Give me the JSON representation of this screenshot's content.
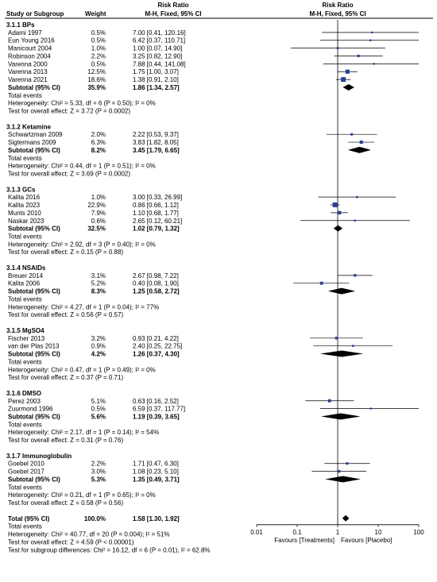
{
  "header": {
    "group1": "Risk Ratio",
    "group2": "Risk Ratio",
    "col_study": "Study or Subgroup",
    "col_weight": "Weight",
    "col_rr": "M-H, Fixed, 95% CI",
    "col_plot": "M-H, Fixed, 95% CI"
  },
  "chart_data": {
    "type": "forest",
    "x_scale": "log",
    "xlim": [
      0.01,
      100
    ],
    "x_ticks": [
      "0.01",
      "0.1",
      "1",
      "10",
      "100"
    ],
    "x_tick_values": [
      0.01,
      0.1,
      1,
      10,
      100
    ],
    "left_label": "Favours [Treatments]",
    "right_label": "Favours [Placebo]",
    "subgroups": [
      {
        "title": "3.1.1 BPs",
        "studies": [
          {
            "name": "Adami 1997",
            "weight": "0.5%",
            "rr_text": "7.00 [0.41, 120.16]",
            "rr": 7.0,
            "lo": 0.41,
            "hi": 120.16
          },
          {
            "name": "Eun Young 2016",
            "weight": "0.5%",
            "rr_text": "6.42 [0.37, 110.71]",
            "rr": 6.42,
            "lo": 0.37,
            "hi": 110.71
          },
          {
            "name": "Manicourt 2004",
            "weight": "1.0%",
            "rr_text": "1.00 [0.07, 14.90]",
            "rr": 1.0,
            "lo": 0.07,
            "hi": 14.9
          },
          {
            "name": "Robinson 2004",
            "weight": "2.2%",
            "rr_text": "3.25 [0.82, 12.90]",
            "rr": 3.25,
            "lo": 0.82,
            "hi": 12.9
          },
          {
            "name": "Varenna 2000",
            "weight": "0.5%",
            "rr_text": "7.88 [0.44, 141.08]",
            "rr": 7.88,
            "lo": 0.44,
            "hi": 141.08
          },
          {
            "name": "Varenna 2013",
            "weight": "12.5%",
            "rr_text": "1.75 [1.00, 3.07]",
            "rr": 1.75,
            "lo": 1.0,
            "hi": 3.07
          },
          {
            "name": "Varenna 2021",
            "weight": "18.6%",
            "rr_text": "1.38 [0.91, 2.10]",
            "rr": 1.38,
            "lo": 0.91,
            "hi": 2.1
          }
        ],
        "subtotal": {
          "label": "Subtotal (95% CI)",
          "weight": "35.9%",
          "rr_text": "1.86 [1.34, 2.57]",
          "rr": 1.86,
          "lo": 1.34,
          "hi": 2.57
        },
        "total_events": "Total events",
        "heterogeneity": "Heterogeneity: Chi² = 5.33, df = 6 (P = 0.50); I² = 0%",
        "overall": "Test for overall effect: Z = 3.72 (P = 0.0002)"
      },
      {
        "title": "3.1.2 Ketamine",
        "studies": [
          {
            "name": "Schwartzman 2009",
            "weight": "2.0%",
            "rr_text": "2.22 [0.53, 9.37]",
            "rr": 2.22,
            "lo": 0.53,
            "hi": 9.37
          },
          {
            "name": "Sigtermans 2009",
            "weight": "6.3%",
            "rr_text": "3.83 [1.82, 8.05]",
            "rr": 3.83,
            "lo": 1.82,
            "hi": 8.05
          }
        ],
        "subtotal": {
          "label": "Subtotal (95% CI)",
          "weight": "8.2%",
          "rr_text": "3.45 [1.79, 6.65]",
          "rr": 3.45,
          "lo": 1.79,
          "hi": 6.65
        },
        "total_events": "Total events",
        "heterogeneity": "Heterogeneity: Chi² = 0.44, df = 1 (P = 0.51); I² = 0%",
        "overall": "Test for overall effect: Z = 3.69 (P = 0.0002)"
      },
      {
        "title": "3.1.3 GCs",
        "studies": [
          {
            "name": "Kalita 2016",
            "weight": "1.0%",
            "rr_text": "3.00 [0.33, 26.99]",
            "rr": 3.0,
            "lo": 0.33,
            "hi": 26.99
          },
          {
            "name": "Kalita 2023",
            "weight": "22.9%",
            "rr_text": "0.86 [0.66, 1.12]",
            "rr": 0.86,
            "lo": 0.66,
            "hi": 1.12
          },
          {
            "name": "Munts 2010",
            "weight": "7.9%",
            "rr_text": "1.10 [0.68, 1.77]",
            "rr": 1.1,
            "lo": 0.68,
            "hi": 1.77
          },
          {
            "name": "Naskar 2023",
            "weight": "0.6%",
            "rr_text": "2.65 [0.12, 60.21]",
            "rr": 2.65,
            "lo": 0.12,
            "hi": 60.21
          }
        ],
        "subtotal": {
          "label": "Subtotal (95% CI)",
          "weight": "32.5%",
          "rr_text": "1.02 [0.79, 1.32]",
          "rr": 1.02,
          "lo": 0.79,
          "hi": 1.32
        },
        "total_events": "Total events",
        "heterogeneity": "Heterogeneity: Chi² = 2.92, df = 3 (P = 0.40); I² = 0%",
        "overall": "Test for overall effect: Z = 0.15 (P = 0.88)"
      },
      {
        "title": "3.1.4 NSAIDs",
        "studies": [
          {
            "name": "Breuer 2014",
            "weight": "3.1%",
            "rr_text": "2.67 [0.98, 7.22]",
            "rr": 2.67,
            "lo": 0.98,
            "hi": 7.22
          },
          {
            "name": "Kalita 2006",
            "weight": "5.2%",
            "rr_text": "0.40 [0.08, 1.90]",
            "rr": 0.4,
            "lo": 0.08,
            "hi": 1.9
          }
        ],
        "subtotal": {
          "label": "Subtotal (95% CI)",
          "weight": "8.3%",
          "rr_text": "1.25 [0.58, 2.72]",
          "rr": 1.25,
          "lo": 0.58,
          "hi": 2.72
        },
        "total_events": "Total events",
        "heterogeneity": "Heterogeneity: Chi² = 4.27, df = 1 (P = 0.04); I² = 77%",
        "overall": "Test for overall effect: Z = 0.56 (P = 0.57)"
      },
      {
        "title": "3.1.5 MgSO4",
        "studies": [
          {
            "name": "Fischer 2013",
            "weight": "3.2%",
            "rr_text": "0.93 [0.21, 4.22]",
            "rr": 0.93,
            "lo": 0.21,
            "hi": 4.22
          },
          {
            "name": "van der Plas 2013",
            "weight": "0.9%",
            "rr_text": "2.40 [0.25, 22.75]",
            "rr": 2.4,
            "lo": 0.25,
            "hi": 22.75
          }
        ],
        "subtotal": {
          "label": "Subtotal (95% CI)",
          "weight": "4.2%",
          "rr_text": "1.26 [0.37, 4.30]",
          "rr": 1.26,
          "lo": 0.37,
          "hi": 4.3
        },
        "total_events": "Total events",
        "heterogeneity": "Heterogeneity: Chi² = 0.47, df = 1 (P = 0.49); I² = 0%",
        "overall": "Test for overall effect: Z = 0.37 (P = 0.71)"
      },
      {
        "title": "3.1.6 DMSO",
        "studies": [
          {
            "name": "Perez 2003",
            "weight": "5.1%",
            "rr_text": "0.63 [0.16, 2.52]",
            "rr": 0.63,
            "lo": 0.16,
            "hi": 2.52
          },
          {
            "name": "Zuurmond 1996",
            "weight": "0.5%",
            "rr_text": "6.59 [0.37, 117.77]",
            "rr": 6.59,
            "lo": 0.37,
            "hi": 117.77
          }
        ],
        "subtotal": {
          "label": "Subtotal (95% CI)",
          "weight": "5.6%",
          "rr_text": "1.19 [0.39, 3.65]",
          "rr": 1.19,
          "lo": 0.39,
          "hi": 3.65
        },
        "total_events": "Total events",
        "heterogeneity": "Heterogeneity: Chi² = 2.17, df = 1 (P = 0.14); I² = 54%",
        "overall": "Test for overall effect: Z = 0.31 (P = 0.76)"
      },
      {
        "title": "3.1.7 Immunoglobulin",
        "studies": [
          {
            "name": "Goebel 2010",
            "weight": "2.2%",
            "rr_text": "1.71 [0.47, 6.30]",
            "rr": 1.71,
            "lo": 0.47,
            "hi": 6.3
          },
          {
            "name": "Goebel 2017",
            "weight": "3.0%",
            "rr_text": "1.08 [0.23, 5.10]",
            "rr": 1.08,
            "lo": 0.23,
            "hi": 5.1
          }
        ],
        "subtotal": {
          "label": "Subtotal (95% CI)",
          "weight": "5.3%",
          "rr_text": "1.35 [0.49, 3.71]",
          "rr": 1.35,
          "lo": 0.49,
          "hi": 3.71
        },
        "total_events": "Total events",
        "heterogeneity": "Heterogeneity: Chi² = 0.21, df = 1 (P = 0.65); I² = 0%",
        "overall": "Test for overall effect: Z = 0.58 (P = 0.56)"
      }
    ],
    "total": {
      "label": "Total (95% CI)",
      "weight": "100.0%",
      "rr_text": "1.58 [1.30, 1.92]",
      "rr": 1.58,
      "lo": 1.3,
      "hi": 1.92,
      "total_events": "Total events",
      "heterogeneity": "Heterogeneity: Chi² = 40.77, df = 20 (P = 0.004); I² = 51%",
      "overall": "Test for overall effect: Z = 4.59 (P < 0.00001)",
      "subgroup_diff": "Test for subgroup differences: Chi² = 16.12, df = 6 (P = 0.01), I² = 62.8%"
    }
  }
}
